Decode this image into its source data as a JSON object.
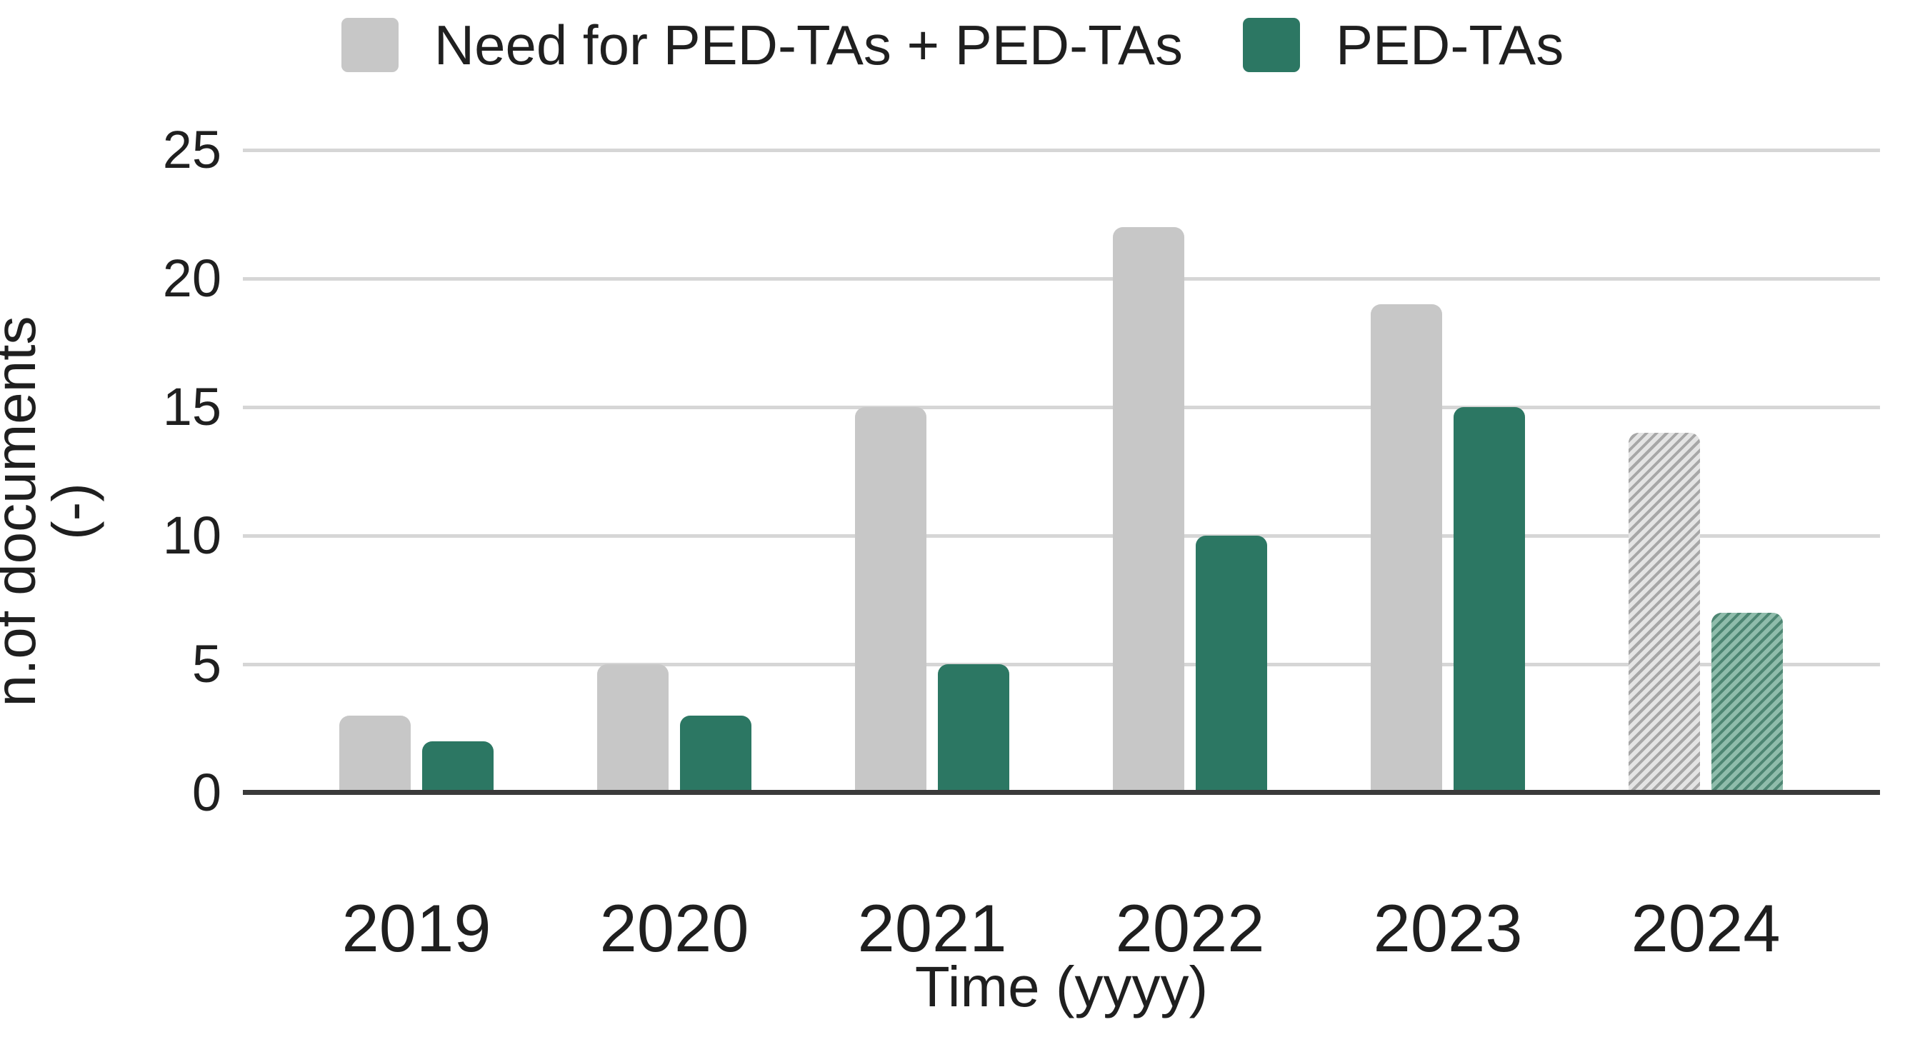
{
  "legend": {
    "items": [
      {
        "label": "Need for PED-TAs + PED-TAs",
        "swatch": "gray"
      },
      {
        "label": "PED-TAs",
        "swatch": "green"
      }
    ]
  },
  "axes": {
    "y_label": "n.of documents (-)",
    "x_label": "Time (yyyy)",
    "y_ticks": [
      "0",
      "5",
      "10",
      "15",
      "20",
      "25"
    ]
  },
  "chart_data": {
    "type": "bar",
    "title": "",
    "categories": [
      "2019",
      "2020",
      "2021",
      "2022",
      "2023",
      "2024"
    ],
    "series": [
      {
        "name": "Need for PED-TAs + PED-TAs",
        "color": "#c7c7c7",
        "values": [
          3,
          5,
          15,
          22,
          19,
          14
        ]
      },
      {
        "name": "PED-TAs",
        "color": "#2c7763",
        "values": [
          2,
          3,
          5,
          10,
          15,
          7
        ]
      }
    ],
    "hatched_categories": [
      "2024"
    ],
    "hatch_style": {
      "direction": "diagonal-up",
      "gray_base": "#e4e4e4",
      "gray_stripe": "#a7a7a7",
      "green_base": "#8fbcab",
      "green_stripe": "#4e8673"
    },
    "xlabel": "Time (yyyy)",
    "ylabel": "n.of documents (-)",
    "ylim": [
      0,
      25
    ],
    "ytick_step": 5,
    "grid": "horizontal",
    "gridline_color": "#d6d6d6",
    "axis_line_color": "#3a3a3a",
    "legend_position": "top-center",
    "background": "#ffffff"
  }
}
